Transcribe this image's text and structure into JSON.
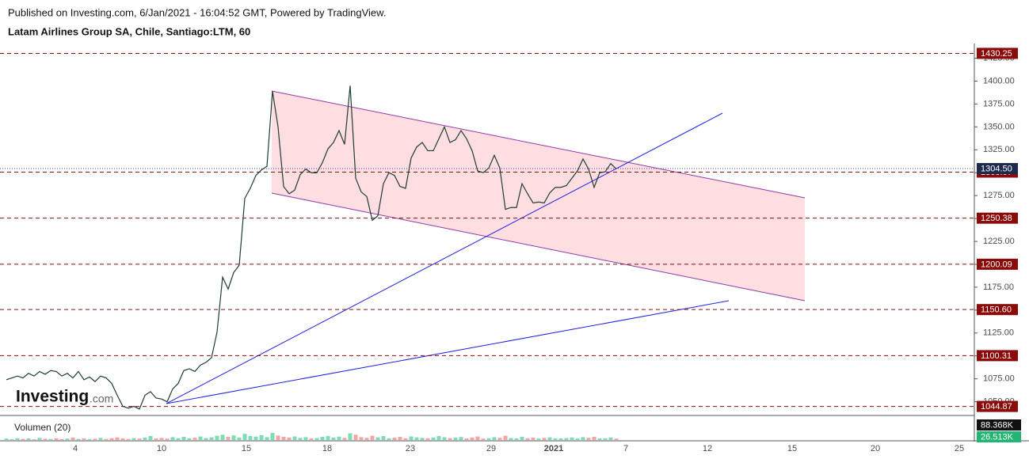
{
  "chart_data": {
    "type": "line",
    "subtitle": "Published on Investing.com, 6/Jan/2021 - 16:04:52 GMT, Powered by TradingView.",
    "title": "Latam Airlines Group SA, Chile, Santiago:LTM, 60",
    "color": "#1f3b36",
    "values": [
      1074,
      1076,
      1078,
      1076,
      1081,
      1078,
      1083,
      1080,
      1084,
      1083,
      1078,
      1081,
      1076,
      1083,
      1074,
      1077,
      1072,
      1078,
      1076,
      1070,
      1057,
      1045,
      1043,
      1045,
      1042,
      1057,
      1061,
      1054,
      1053,
      1050,
      1064,
      1070,
      1084,
      1086,
      1083,
      1090,
      1093,
      1098,
      1126,
      1186,
      1173,
      1191,
      1199,
      1272,
      1283,
      1297,
      1303,
      1307,
      1389,
      1350,
      1285,
      1277,
      1281,
      1298,
      1304,
      1300,
      1300,
      1311,
      1326,
      1333,
      1346,
      1331,
      1395,
      1294,
      1279,
      1274,
      1248,
      1253,
      1288,
      1300,
      1297,
      1285,
      1283,
      1316,
      1328,
      1333,
      1324,
      1324,
      1337,
      1350,
      1333,
      1336,
      1346,
      1337,
      1324,
      1302,
      1300,
      1305,
      1319,
      1305,
      1260,
      1262,
      1262,
      1288,
      1277,
      1267,
      1268,
      1267,
      1278,
      1284,
      1284,
      1286,
      1294,
      1302,
      1315,
      1304,
      1284,
      1300,
      1301,
      1310,
      1304
    ],
    "ylim": [
      1035,
      1441
    ],
    "yticks": [
      {
        "value": 1050,
        "label": "1050.00"
      },
      {
        "value": 1075,
        "label": "1075.00"
      },
      {
        "value": 1100,
        "label": "1100.00"
      },
      {
        "value": 1125,
        "label": "1125.00"
      },
      {
        "value": 1150,
        "label": "1150.00"
      },
      {
        "value": 1175,
        "label": "1175.00"
      },
      {
        "value": 1200,
        "label": "1200.00"
      },
      {
        "value": 1225,
        "label": "1225.00"
      },
      {
        "value": 1250,
        "label": "1250.00"
      },
      {
        "value": 1275,
        "label": "1275.00"
      },
      {
        "value": 1300,
        "label": "1300.00"
      },
      {
        "value": 1325,
        "label": "1325.00"
      },
      {
        "value": 1350,
        "label": "1350.00"
      },
      {
        "value": 1375,
        "label": "1375.00"
      },
      {
        "value": 1400,
        "label": "1400.00"
      },
      {
        "value": 1425,
        "label": "1425.00"
      }
    ],
    "x_labels": [
      "4",
      "10",
      "15",
      "18",
      "23",
      "29",
      "2021",
      "7",
      "12",
      "15",
      "20",
      "25"
    ],
    "levels": [
      1430.25,
      1300.67,
      1250.38,
      1200.09,
      {
        "value": 1150.6,
        "label": "1150.60"
      },
      1100.31,
      1044.87
    ],
    "level_color": "#8b0a0a",
    "last_price": {
      "value": 1304.5,
      "label": "1304.50"
    },
    "last_price_color": "#1c2b4d",
    "grid": false,
    "volume": {
      "label": "Volumen (20)",
      "ylim": [
        0,
        130
      ],
      "values": [
        8,
        5,
        10,
        6,
        9,
        4,
        12,
        7,
        6,
        10,
        5,
        8,
        14,
        6,
        9,
        5,
        7,
        12,
        6,
        10,
        15,
        9,
        6,
        11,
        8,
        14,
        22,
        9,
        12,
        8,
        16,
        10,
        18,
        9,
        13,
        20,
        11,
        15,
        24,
        30,
        18,
        26,
        14,
        35,
        22,
        19,
        28,
        16,
        40,
        25,
        18,
        14,
        20,
        12,
        16,
        9,
        11,
        18,
        22,
        14,
        19,
        12,
        38,
        30,
        16,
        12,
        24,
        15,
        22,
        10,
        13,
        18,
        9,
        20,
        15,
        12,
        10,
        14,
        22,
        16,
        11,
        13,
        17,
        9,
        14,
        20,
        8,
        10,
        16,
        12,
        24,
        11,
        9,
        18,
        10,
        13,
        8,
        12,
        15,
        10,
        9,
        11,
        14,
        8,
        16,
        12,
        18,
        9,
        10,
        14,
        8
      ],
      "up_color": "#7ddcb6",
      "down_color": "#f5a3a3",
      "last_labels": [
        {
          "value": 88.368,
          "label": "88.368K"
        },
        {
          "value": 26.513,
          "label": "26.513K"
        }
      ]
    },
    "logo": {
      "brand": "Investing",
      "suffix": ".com"
    }
  }
}
